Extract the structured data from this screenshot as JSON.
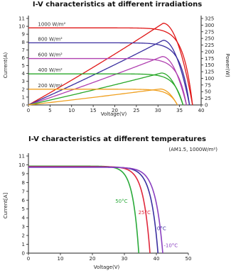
{
  "chart_data": [
    {
      "type": "line",
      "title": "I-V characteristics at different irradiations",
      "xlabel": "Voltage(V)",
      "ylabel": "Current(A)",
      "y2label": "Power(W)",
      "xlim": [
        0,
        40
      ],
      "ylim": [
        0,
        11
      ],
      "y2lim": [
        0,
        325
      ],
      "x_ticks": [
        "0",
        "5",
        "10",
        "15",
        "20",
        "25",
        "30",
        "35",
        "40"
      ],
      "y_ticks": [
        "0",
        "1",
        "2",
        "3",
        "4",
        "5",
        "6",
        "7",
        "8",
        "9",
        "10",
        "11"
      ],
      "y2_ticks": [
        "0",
        "25",
        "50",
        "75",
        "100",
        "125",
        "150",
        "175",
        "200",
        "225",
        "250",
        "275",
        "300",
        "325"
      ],
      "grid": false,
      "series": [
        {
          "name": "1000 W/m²",
          "color": "#e01818",
          "isc": 9.8,
          "voc": 38.0,
          "pmax": 307,
          "vmp": 31.2
        },
        {
          "name": "800 W/m²",
          "color": "#3a2fa0",
          "isc": 7.9,
          "voc": 37.3,
          "pmax": 243,
          "vmp": 31.2
        },
        {
          "name": "600 W/m²",
          "color": "#b040b0",
          "isc": 5.9,
          "voc": 36.6,
          "pmax": 182,
          "vmp": 31.0
        },
        {
          "name": "400 W/m²",
          "color": "#28a828",
          "isc": 3.95,
          "voc": 35.8,
          "pmax": 120,
          "vmp": 30.8
        },
        {
          "name": "200 W/m²",
          "color": "#f0a020",
          "isc": 2.0,
          "voc": 34.5,
          "pmax": 60,
          "vmp": 30.5
        }
      ]
    },
    {
      "type": "line",
      "title": "I-V characteristics at different temperatures",
      "subtitle": "(AM1.5, 1000W/m²)",
      "xlabel": "Voltage(V)",
      "ylabel": "Current[A]",
      "xlim": [
        0,
        50
      ],
      "ylim": [
        0,
        11
      ],
      "x_ticks": [
        "0",
        "10",
        "20",
        "30",
        "40",
        "50"
      ],
      "y_ticks": [
        "0",
        "1",
        "2",
        "3",
        "4",
        "5",
        "6",
        "7",
        "8",
        "9",
        "10",
        "11"
      ],
      "grid": false,
      "series": [
        {
          "name": "50°C",
          "color": "#2aaa3a",
          "isc": 9.85,
          "voc": 34.5
        },
        {
          "name": "25°C",
          "color": "#e0283c",
          "isc": 9.8,
          "voc": 38.0
        },
        {
          "name": "0°C",
          "color": "#3a2fa0",
          "isc": 9.75,
          "voc": 40.5
        },
        {
          "name": "-10°C",
          "color": "#8a40c0",
          "isc": 9.72,
          "voc": 42.0
        }
      ]
    }
  ]
}
